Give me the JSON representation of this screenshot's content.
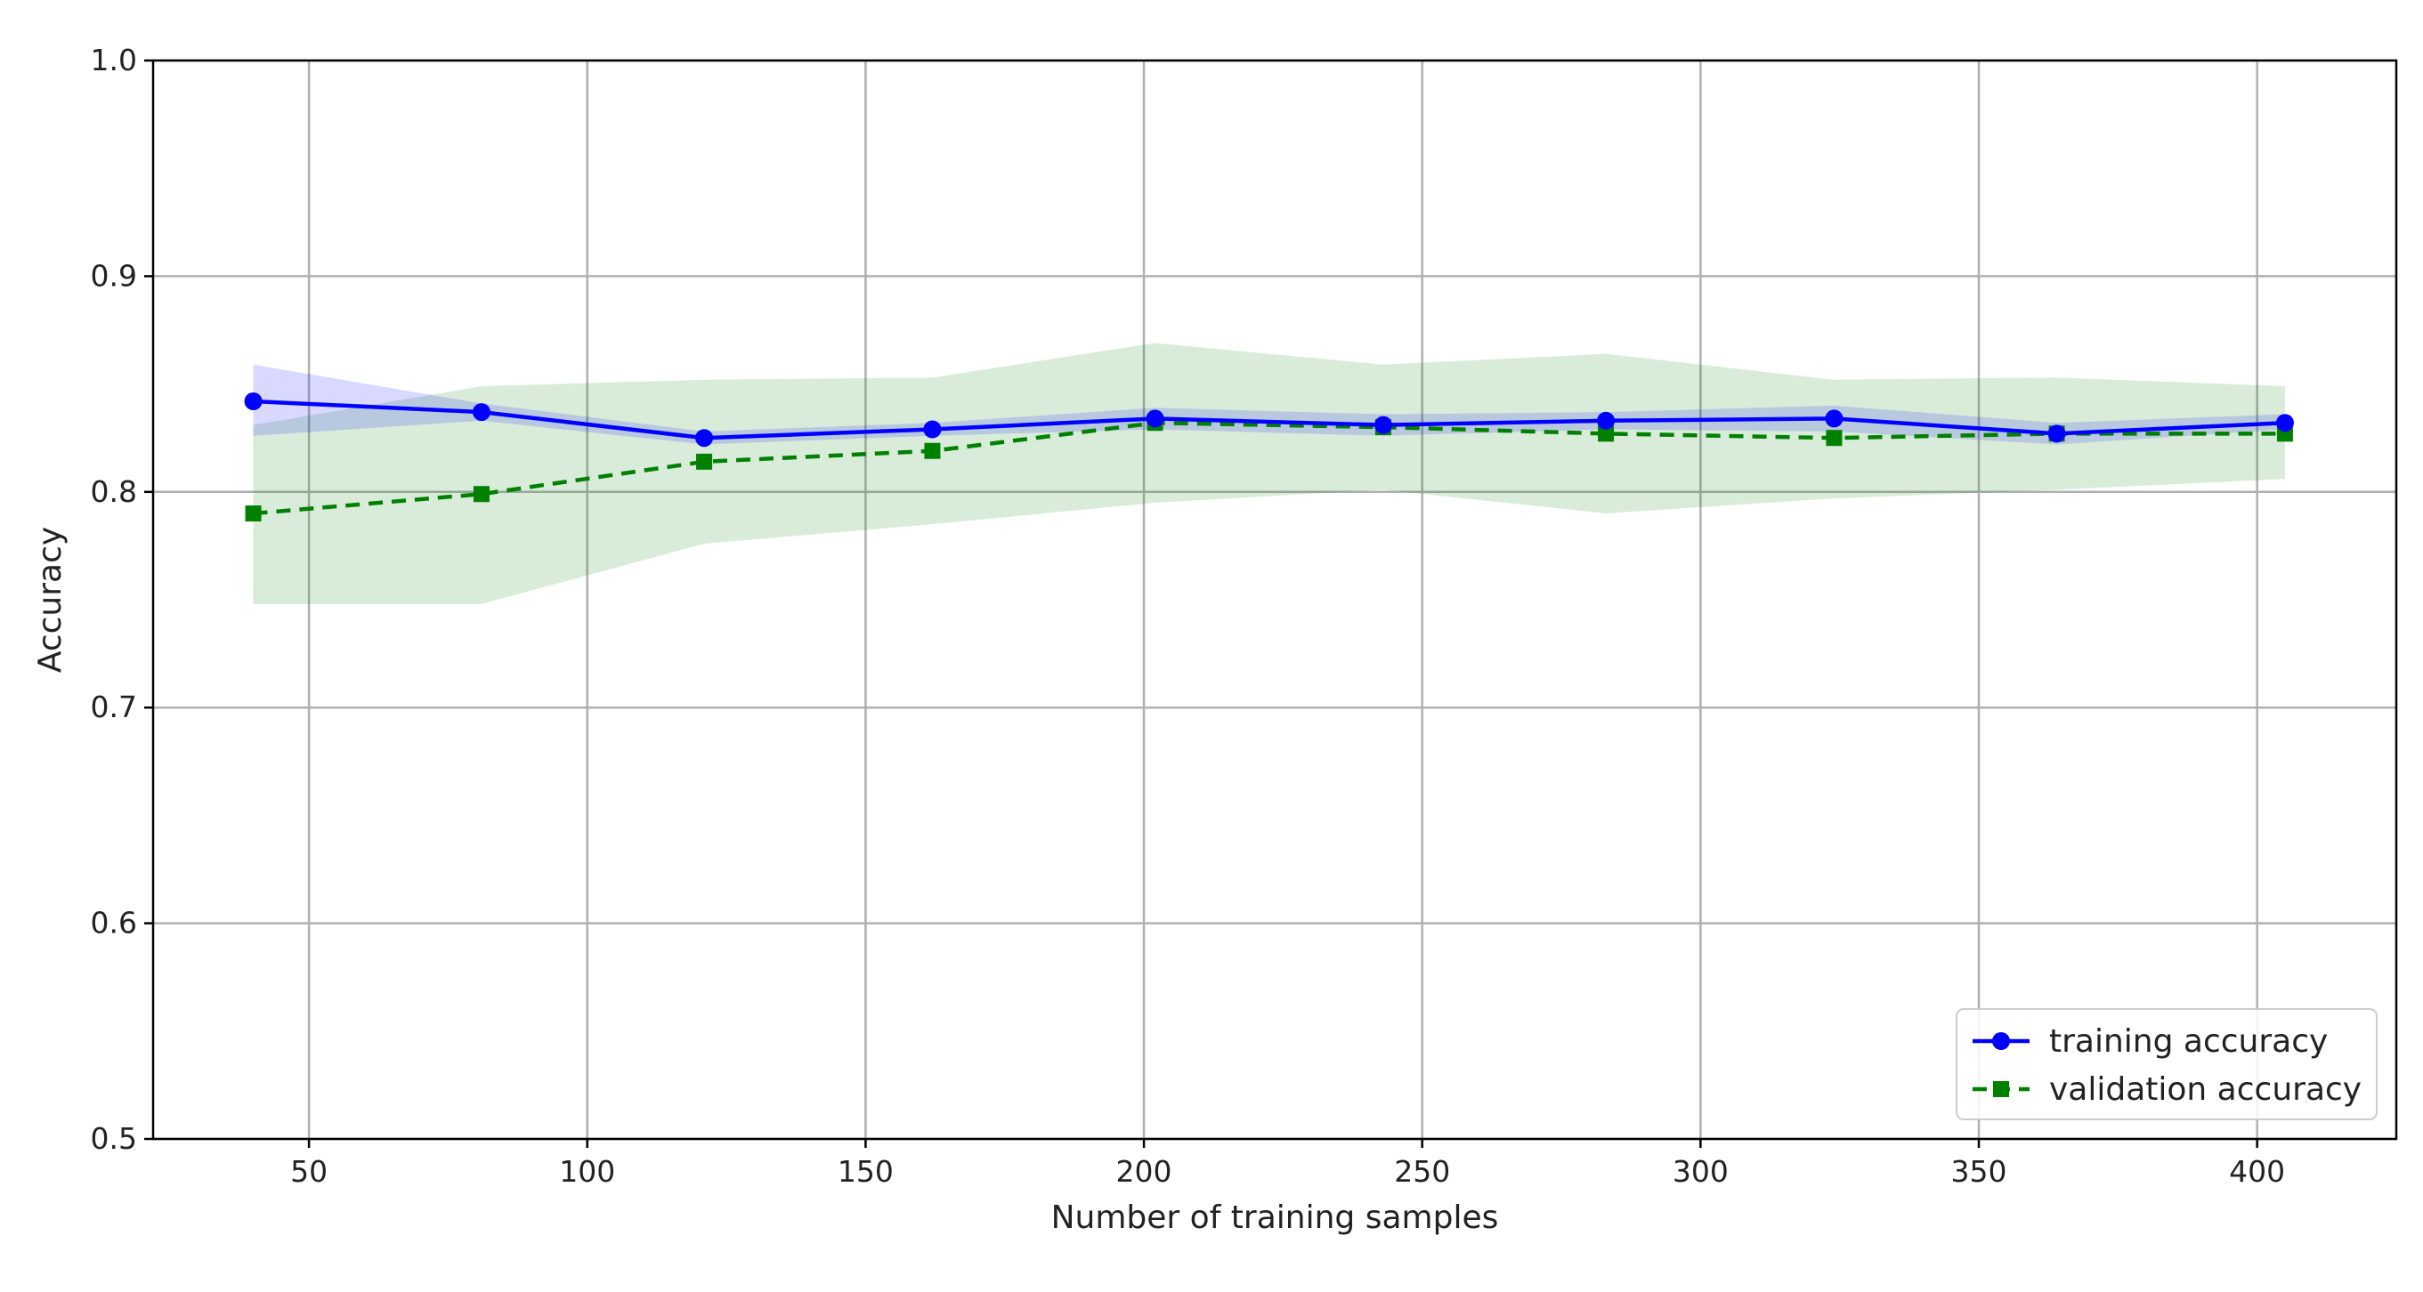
{
  "chart_data": {
    "type": "line",
    "title": "",
    "xlabel": "Number of training samples",
    "ylabel": "Accuracy",
    "xlim": [
      22,
      425
    ],
    "ylim": [
      0.5,
      1.0
    ],
    "xticks": [
      "50",
      "100",
      "150",
      "200",
      "250",
      "300",
      "350",
      "400"
    ],
    "xtick_values": [
      50,
      100,
      150,
      200,
      250,
      300,
      350,
      400
    ],
    "yticks": [
      "0.5",
      "0.6",
      "0.7",
      "0.8",
      "0.9",
      "1.0"
    ],
    "ytick_values": [
      0.5,
      0.6,
      0.7,
      0.8,
      0.9,
      1.0
    ],
    "grid": true,
    "legend_position": "lower right",
    "x": [
      40,
      81,
      121,
      162,
      202,
      243,
      283,
      324,
      364,
      405
    ],
    "series": [
      {
        "name": "training accuracy",
        "color": "#0000ff",
        "marker": "circle",
        "line_style": "solid",
        "values": [
          0.842,
          0.837,
          0.825,
          0.829,
          0.834,
          0.831,
          0.833,
          0.834,
          0.827,
          0.832
        ],
        "band_lower": [
          0.826,
          0.833,
          0.822,
          0.826,
          0.829,
          0.826,
          0.829,
          0.828,
          0.822,
          0.829
        ],
        "band_upper": [
          0.859,
          0.841,
          0.828,
          0.832,
          0.839,
          0.836,
          0.837,
          0.84,
          0.832,
          0.836
        ],
        "band_color": "#0000ff"
      },
      {
        "name": "validation accuracy",
        "color": "#008000",
        "marker": "square",
        "line_style": "dashed",
        "values": [
          0.79,
          0.799,
          0.814,
          0.819,
          0.832,
          0.83,
          0.827,
          0.825,
          0.827,
          0.827
        ],
        "band_lower": [
          0.748,
          0.748,
          0.776,
          0.785,
          0.795,
          0.801,
          0.79,
          0.797,
          0.801,
          0.806
        ],
        "band_upper": [
          0.831,
          0.849,
          0.852,
          0.853,
          0.869,
          0.859,
          0.864,
          0.852,
          0.853,
          0.849
        ],
        "band_color": "#008000"
      }
    ]
  }
}
